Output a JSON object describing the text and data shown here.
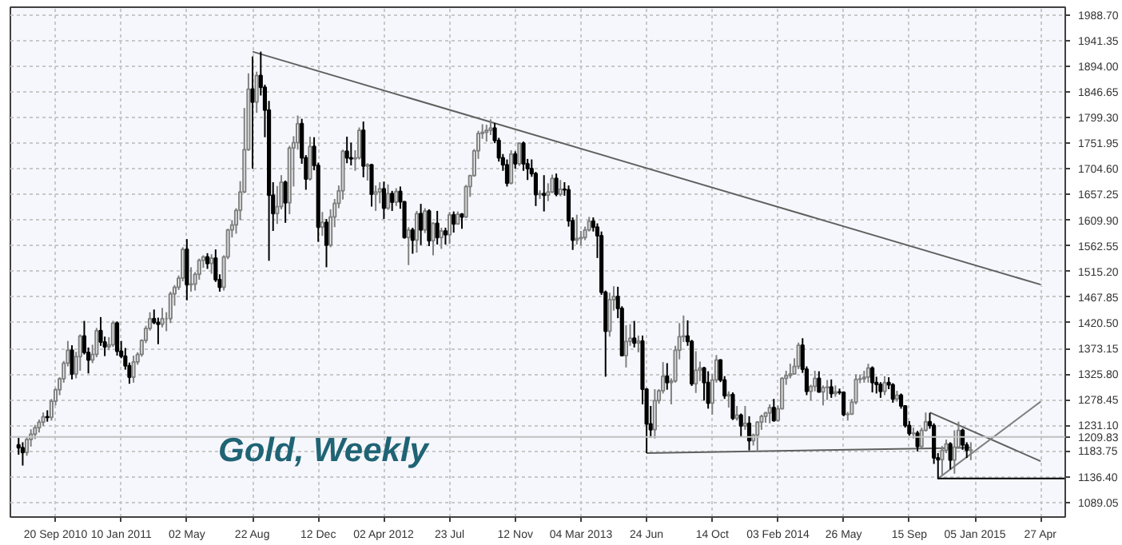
{
  "chart_data": {
    "type": "candlestick",
    "title": "Gold, Weekly",
    "xlim": [
      "2010-07-05",
      "2015-06-08"
    ],
    "ylim": [
      1062,
      2003
    ],
    "xticks": [
      {
        "value": "2010-09-20",
        "label": "20 Sep 2010"
      },
      {
        "value": "2011-01-10",
        "label": "10 Jan 2011"
      },
      {
        "value": "2011-05-02",
        "label": "02 May"
      },
      {
        "value": "2011-08-22",
        "label": "22 Aug"
      },
      {
        "value": "2011-12-12",
        "label": "12 Dec"
      },
      {
        "value": "2012-04-02",
        "label": "02 Apr 2012"
      },
      {
        "value": "2012-07-23",
        "label": "23 Jul"
      },
      {
        "value": "2012-11-12",
        "label": "12 Nov"
      },
      {
        "value": "2013-03-04",
        "label": "04 Mar 2013"
      },
      {
        "value": "2013-06-24",
        "label": "24 Jun"
      },
      {
        "value": "2013-10-14",
        "label": "14 Oct"
      },
      {
        "value": "2014-02-03",
        "label": "03 Feb 2014"
      },
      {
        "value": "2014-05-26",
        "label": "26 May"
      },
      {
        "value": "2014-09-15",
        "label": "15 Sep"
      },
      {
        "value": "2015-01-05",
        "label": "05 Jan 2015"
      },
      {
        "value": "2015-04-27",
        "label": "27 Apr"
      }
    ],
    "yticks": [
      {
        "value": 1089.05,
        "label": "1089.05"
      },
      {
        "value": 1136.4,
        "label": "1136.40"
      },
      {
        "value": 1183.75,
        "label": "1183.75"
      },
      {
        "value": 1231.1,
        "label": "1231.10"
      },
      {
        "value": 1278.45,
        "label": "1278.45"
      },
      {
        "value": 1325.8,
        "label": "1325.80"
      },
      {
        "value": 1373.15,
        "label": "1373.15"
      },
      {
        "value": 1420.5,
        "label": "1420.50"
      },
      {
        "value": 1467.85,
        "label": "1467.85"
      },
      {
        "value": 1515.2,
        "label": "1515.20"
      },
      {
        "value": 1562.55,
        "label": "1562.55"
      },
      {
        "value": 1609.9,
        "label": "1609.90"
      },
      {
        "value": 1657.25,
        "label": "1657.25"
      },
      {
        "value": 1704.6,
        "label": "1704.60"
      },
      {
        "value": 1751.95,
        "label": "1751.95"
      },
      {
        "value": 1799.3,
        "label": "1799.30"
      },
      {
        "value": 1846.65,
        "label": "1846.65"
      },
      {
        "value": 1894.0,
        "label": "1894.00"
      },
      {
        "value": 1941.35,
        "label": "1941.35"
      },
      {
        "value": 1988.7,
        "label": "1988.70"
      }
    ],
    "grid": true,
    "tick_labels": true,
    "ref_lines": [
      {
        "axis": "y",
        "value": 1209.83,
        "label": "1209.83",
        "color": "#c0c0c0"
      }
    ],
    "x": [
      "2010-07-19",
      "2010-07-26",
      "2010-08-02",
      "2010-08-09",
      "2010-08-16",
      "2010-08-23",
      "2010-08-30",
      "2010-09-06",
      "2010-09-13",
      "2010-09-20",
      "2010-09-27",
      "2010-10-04",
      "2010-10-11",
      "2010-10-18",
      "2010-10-25",
      "2010-11-01",
      "2010-11-08",
      "2010-11-15",
      "2010-11-22",
      "2010-11-29",
      "2010-12-06",
      "2010-12-13",
      "2010-12-20",
      "2010-12-27",
      "2011-01-03",
      "2011-01-10",
      "2011-01-17",
      "2011-01-24",
      "2011-01-31",
      "2011-02-07",
      "2011-02-14",
      "2011-02-21",
      "2011-02-28",
      "2011-03-07",
      "2011-03-14",
      "2011-03-21",
      "2011-03-28",
      "2011-04-04",
      "2011-04-11",
      "2011-04-18",
      "2011-04-25",
      "2011-05-02",
      "2011-05-09",
      "2011-05-16",
      "2011-05-23",
      "2011-05-30",
      "2011-06-06",
      "2011-06-13",
      "2011-06-20",
      "2011-06-27",
      "2011-07-04",
      "2011-07-11",
      "2011-07-18",
      "2011-07-25",
      "2011-08-01",
      "2011-08-08",
      "2011-08-15",
      "2011-08-22",
      "2011-08-29",
      "2011-09-05",
      "2011-09-12",
      "2011-09-19",
      "2011-09-26",
      "2011-10-03",
      "2011-10-10",
      "2011-10-17",
      "2011-10-24",
      "2011-10-31",
      "2011-11-07",
      "2011-11-14",
      "2011-11-21",
      "2011-11-28",
      "2011-12-05",
      "2011-12-12",
      "2011-12-19",
      "2011-12-26",
      "2012-01-02",
      "2012-01-09",
      "2012-01-16",
      "2012-01-23",
      "2012-01-30",
      "2012-02-06",
      "2012-02-13",
      "2012-02-20",
      "2012-02-27",
      "2012-03-05",
      "2012-03-12",
      "2012-03-19",
      "2012-03-26",
      "2012-04-02",
      "2012-04-09",
      "2012-04-16",
      "2012-04-23",
      "2012-04-30",
      "2012-05-07",
      "2012-05-14",
      "2012-05-21",
      "2012-05-28",
      "2012-06-04",
      "2012-06-11",
      "2012-06-18",
      "2012-06-25",
      "2012-07-02",
      "2012-07-09",
      "2012-07-16",
      "2012-07-23",
      "2012-07-30",
      "2012-08-06",
      "2012-08-13",
      "2012-08-20",
      "2012-08-27",
      "2012-09-03",
      "2012-09-10",
      "2012-09-17",
      "2012-09-24",
      "2012-10-01",
      "2012-10-08",
      "2012-10-15",
      "2012-10-22",
      "2012-10-29",
      "2012-11-05",
      "2012-11-12",
      "2012-11-19",
      "2012-11-26",
      "2012-12-03",
      "2012-12-10",
      "2012-12-17",
      "2012-12-24",
      "2012-12-31",
      "2013-01-07",
      "2013-01-14",
      "2013-01-21",
      "2013-01-28",
      "2013-02-04",
      "2013-02-11",
      "2013-02-18",
      "2013-02-25",
      "2013-03-04",
      "2013-03-11",
      "2013-03-18",
      "2013-03-25",
      "2013-04-01",
      "2013-04-08",
      "2013-04-15",
      "2013-04-22",
      "2013-04-29",
      "2013-05-06",
      "2013-05-13",
      "2013-05-20",
      "2013-05-27",
      "2013-06-03",
      "2013-06-10",
      "2013-06-17",
      "2013-06-24",
      "2013-07-01",
      "2013-07-08",
      "2013-07-15",
      "2013-07-22",
      "2013-07-29",
      "2013-08-05",
      "2013-08-12",
      "2013-08-19",
      "2013-08-26",
      "2013-09-02",
      "2013-09-09",
      "2013-09-16",
      "2013-09-23",
      "2013-09-30",
      "2013-10-07",
      "2013-10-14",
      "2013-10-21",
      "2013-10-28",
      "2013-11-04",
      "2013-11-11",
      "2013-11-18",
      "2013-11-25",
      "2013-12-02",
      "2013-12-09",
      "2013-12-16",
      "2013-12-23",
      "2013-12-30",
      "2014-01-06",
      "2014-01-13",
      "2014-01-20",
      "2014-01-27",
      "2014-02-03",
      "2014-02-10",
      "2014-02-17",
      "2014-02-24",
      "2014-03-03",
      "2014-03-10",
      "2014-03-17",
      "2014-03-24",
      "2014-03-31",
      "2014-04-07",
      "2014-04-14",
      "2014-04-21",
      "2014-04-28",
      "2014-05-05",
      "2014-05-12",
      "2014-05-19",
      "2014-05-26",
      "2014-06-02",
      "2014-06-09",
      "2014-06-16",
      "2014-06-23",
      "2014-06-30",
      "2014-07-07",
      "2014-07-14",
      "2014-07-21",
      "2014-07-28",
      "2014-08-04",
      "2014-08-11",
      "2014-08-18",
      "2014-08-25",
      "2014-09-01",
      "2014-09-08",
      "2014-09-15",
      "2014-09-22",
      "2014-09-29",
      "2014-10-06",
      "2014-10-13",
      "2014-10-20",
      "2014-10-27",
      "2014-11-03",
      "2014-11-10",
      "2014-11-17",
      "2014-11-24",
      "2014-12-01",
      "2014-12-08",
      "2014-12-15",
      "2014-12-22",
      "2014-12-29"
    ],
    "ohlc": [
      [
        1195,
        1208,
        1177,
        1190
      ],
      [
        1190,
        1200,
        1157,
        1181
      ],
      [
        1181,
        1210,
        1175,
        1205
      ],
      [
        1205,
        1224,
        1192,
        1215
      ],
      [
        1215,
        1232,
        1206,
        1227
      ],
      [
        1227,
        1242,
        1218,
        1237
      ],
      [
        1237,
        1255,
        1230,
        1247
      ],
      [
        1247,
        1259,
        1238,
        1246
      ],
      [
        1246,
        1280,
        1240,
        1276
      ],
      [
        1276,
        1300,
        1268,
        1297
      ],
      [
        1297,
        1320,
        1287,
        1317
      ],
      [
        1317,
        1350,
        1310,
        1346
      ],
      [
        1346,
        1387,
        1340,
        1370
      ],
      [
        1370,
        1379,
        1316,
        1326
      ],
      [
        1326,
        1367,
        1318,
        1358
      ],
      [
        1358,
        1399,
        1332,
        1396
      ],
      [
        1396,
        1424,
        1362,
        1366
      ],
      [
        1366,
        1375,
        1327,
        1352
      ],
      [
        1352,
        1380,
        1346,
        1362
      ],
      [
        1362,
        1411,
        1357,
        1406
      ],
      [
        1406,
        1431,
        1378,
        1385
      ],
      [
        1385,
        1395,
        1359,
        1376
      ],
      [
        1376,
        1394,
        1370,
        1380
      ],
      [
        1380,
        1424,
        1376,
        1420
      ],
      [
        1420,
        1423,
        1360,
        1368
      ],
      [
        1368,
        1387,
        1355,
        1359
      ],
      [
        1359,
        1374,
        1334,
        1341
      ],
      [
        1341,
        1347,
        1308,
        1320
      ],
      [
        1320,
        1360,
        1310,
        1348
      ],
      [
        1348,
        1366,
        1343,
        1362
      ],
      [
        1362,
        1390,
        1358,
        1388
      ],
      [
        1388,
        1415,
        1383,
        1410
      ],
      [
        1410,
        1440,
        1406,
        1428
      ],
      [
        1428,
        1445,
        1418,
        1421
      ],
      [
        1421,
        1430,
        1381,
        1418
      ],
      [
        1418,
        1448,
        1412,
        1428
      ],
      [
        1428,
        1440,
        1405,
        1428
      ],
      [
        1428,
        1478,
        1420,
        1474
      ],
      [
        1474,
        1490,
        1452,
        1486
      ],
      [
        1486,
        1508,
        1481,
        1503
      ],
      [
        1503,
        1560,
        1497,
        1556
      ],
      [
        1556,
        1575,
        1462,
        1491
      ],
      [
        1491,
        1523,
        1478,
        1492
      ],
      [
        1492,
        1514,
        1480,
        1510
      ],
      [
        1510,
        1539,
        1500,
        1536
      ],
      [
        1536,
        1545,
        1522,
        1542
      ],
      [
        1542,
        1549,
        1520,
        1530
      ],
      [
        1530,
        1547,
        1511,
        1540
      ],
      [
        1540,
        1556,
        1496,
        1500
      ],
      [
        1500,
        1510,
        1478,
        1486
      ],
      [
        1486,
        1545,
        1480,
        1542
      ],
      [
        1542,
        1594,
        1538,
        1592
      ],
      [
        1592,
        1610,
        1578,
        1601
      ],
      [
        1601,
        1632,
        1585,
        1628
      ],
      [
        1628,
        1682,
        1610,
        1662
      ],
      [
        1662,
        1817,
        1660,
        1740
      ],
      [
        1740,
        1881,
        1738,
        1852
      ],
      [
        1852,
        1912,
        1705,
        1828
      ],
      [
        1828,
        1884,
        1808,
        1877
      ],
      [
        1877,
        1921,
        1840,
        1855
      ],
      [
        1855,
        1860,
        1763,
        1813
      ],
      [
        1813,
        1830,
        1535,
        1656
      ],
      [
        1656,
        1680,
        1590,
        1622
      ],
      [
        1622,
        1673,
        1603,
        1635
      ],
      [
        1635,
        1693,
        1630,
        1680
      ],
      [
        1680,
        1683,
        1605,
        1642
      ],
      [
        1642,
        1747,
        1621,
        1743
      ],
      [
        1743,
        1765,
        1672,
        1753
      ],
      [
        1753,
        1803,
        1740,
        1788
      ],
      [
        1788,
        1797,
        1714,
        1725
      ],
      [
        1725,
        1730,
        1666,
        1686
      ],
      [
        1686,
        1764,
        1683,
        1746
      ],
      [
        1746,
        1763,
        1702,
        1711
      ],
      [
        1711,
        1716,
        1570,
        1597
      ],
      [
        1597,
        1625,
        1581,
        1606
      ],
      [
        1606,
        1612,
        1523,
        1564
      ],
      [
        1564,
        1630,
        1560,
        1616
      ],
      [
        1616,
        1649,
        1597,
        1641
      ],
      [
        1641,
        1674,
        1632,
        1664
      ],
      [
        1664,
        1740,
        1648,
        1737
      ],
      [
        1737,
        1764,
        1715,
        1725
      ],
      [
        1725,
        1753,
        1711,
        1723
      ],
      [
        1723,
        1739,
        1701,
        1725
      ],
      [
        1725,
        1781,
        1722,
        1776
      ],
      [
        1776,
        1792,
        1689,
        1710
      ],
      [
        1710,
        1715,
        1683,
        1712
      ],
      [
        1712,
        1714,
        1635,
        1658
      ],
      [
        1658,
        1674,
        1627,
        1662
      ],
      [
        1662,
        1680,
        1641,
        1668
      ],
      [
        1668,
        1681,
        1612,
        1632
      ],
      [
        1632,
        1676,
        1629,
        1659
      ],
      [
        1659,
        1664,
        1627,
        1643
      ],
      [
        1643,
        1669,
        1636,
        1663
      ],
      [
        1663,
        1672,
        1631,
        1644
      ],
      [
        1644,
        1645,
        1576,
        1578
      ],
      [
        1578,
        1597,
        1527,
        1592
      ],
      [
        1592,
        1596,
        1548,
        1573
      ],
      [
        1573,
        1627,
        1550,
        1622
      ],
      [
        1622,
        1640,
        1564,
        1592
      ],
      [
        1592,
        1632,
        1586,
        1627
      ],
      [
        1627,
        1630,
        1562,
        1572
      ],
      [
        1572,
        1606,
        1545,
        1604
      ],
      [
        1604,
        1627,
        1565,
        1578
      ],
      [
        1578,
        1596,
        1557,
        1590
      ],
      [
        1590,
        1596,
        1565,
        1583
      ],
      [
        1583,
        1625,
        1566,
        1620
      ],
      [
        1620,
        1626,
        1587,
        1603
      ],
      [
        1603,
        1626,
        1602,
        1621
      ],
      [
        1621,
        1623,
        1594,
        1616
      ],
      [
        1616,
        1675,
        1614,
        1672
      ],
      [
        1672,
        1693,
        1653,
        1692
      ],
      [
        1692,
        1741,
        1690,
        1738
      ],
      [
        1738,
        1775,
        1723,
        1770
      ],
      [
        1770,
        1787,
        1760,
        1772
      ],
      [
        1772,
        1786,
        1755,
        1776
      ],
      [
        1776,
        1796,
        1767,
        1780
      ],
      [
        1780,
        1789,
        1752,
        1757
      ],
      [
        1757,
        1762,
        1718,
        1725
      ],
      [
        1725,
        1732,
        1701,
        1712
      ],
      [
        1712,
        1722,
        1672,
        1678
      ],
      [
        1678,
        1739,
        1676,
        1732
      ],
      [
        1732,
        1737,
        1705,
        1714
      ],
      [
        1714,
        1753,
        1710,
        1752
      ],
      [
        1752,
        1755,
        1701,
        1714
      ],
      [
        1714,
        1723,
        1684,
        1705
      ],
      [
        1705,
        1722,
        1690,
        1696
      ],
      [
        1696,
        1699,
        1636,
        1657
      ],
      [
        1657,
        1665,
        1649,
        1659
      ],
      [
        1659,
        1693,
        1626,
        1656
      ],
      [
        1656,
        1678,
        1645,
        1662
      ],
      [
        1662,
        1694,
        1660,
        1687
      ],
      [
        1687,
        1696,
        1654,
        1658
      ],
      [
        1658,
        1684,
        1654,
        1667
      ],
      [
        1667,
        1680,
        1655,
        1666
      ],
      [
        1666,
        1674,
        1598,
        1609
      ],
      [
        1609,
        1615,
        1555,
        1573
      ],
      [
        1573,
        1620,
        1565,
        1576
      ],
      [
        1576,
        1590,
        1563,
        1578
      ],
      [
        1578,
        1598,
        1573,
        1592
      ],
      [
        1592,
        1616,
        1589,
        1608
      ],
      [
        1608,
        1615,
        1589,
        1597
      ],
      [
        1597,
        1604,
        1540,
        1581
      ],
      [
        1581,
        1589,
        1472,
        1477
      ],
      [
        1477,
        1480,
        1321,
        1405
      ],
      [
        1405,
        1476,
        1395,
        1463
      ],
      [
        1463,
        1488,
        1443,
        1469
      ],
      [
        1469,
        1487,
        1429,
        1447
      ],
      [
        1447,
        1451,
        1359,
        1360
      ],
      [
        1360,
        1416,
        1338,
        1386
      ],
      [
        1386,
        1418,
        1378,
        1392
      ],
      [
        1392,
        1424,
        1375,
        1383
      ],
      [
        1383,
        1397,
        1366,
        1387
      ],
      [
        1387,
        1397,
        1270,
        1298
      ],
      [
        1298,
        1300,
        1180,
        1234
      ],
      [
        1234,
        1267,
        1208,
        1223
      ],
      [
        1223,
        1298,
        1207,
        1277
      ],
      [
        1277,
        1298,
        1271,
        1295
      ],
      [
        1295,
        1348,
        1290,
        1322
      ],
      [
        1322,
        1346,
        1297,
        1310
      ],
      [
        1310,
        1318,
        1270,
        1313
      ],
      [
        1313,
        1378,
        1310,
        1370
      ],
      [
        1370,
        1420,
        1353,
        1395
      ],
      [
        1395,
        1434,
        1385,
        1396
      ],
      [
        1396,
        1425,
        1378,
        1386
      ],
      [
        1386,
        1389,
        1304,
        1308
      ],
      [
        1308,
        1368,
        1291,
        1333
      ],
      [
        1333,
        1349,
        1313,
        1337
      ],
      [
        1337,
        1339,
        1277,
        1310
      ],
      [
        1310,
        1331,
        1262,
        1272
      ],
      [
        1272,
        1326,
        1251,
        1315
      ],
      [
        1315,
        1361,
        1310,
        1352
      ],
      [
        1352,
        1353,
        1311,
        1315
      ],
      [
        1315,
        1322,
        1280,
        1286
      ],
      [
        1286,
        1294,
        1264,
        1288
      ],
      [
        1288,
        1292,
        1241,
        1244
      ],
      [
        1244,
        1267,
        1240,
        1250
      ],
      [
        1250,
        1253,
        1211,
        1230
      ],
      [
        1230,
        1267,
        1223,
        1235
      ],
      [
        1235,
        1248,
        1185,
        1203
      ],
      [
        1203,
        1216,
        1194,
        1213
      ],
      [
        1213,
        1239,
        1182,
        1237
      ],
      [
        1237,
        1251,
        1223,
        1248
      ],
      [
        1248,
        1256,
        1236,
        1254
      ],
      [
        1254,
        1270,
        1235,
        1264
      ],
      [
        1264,
        1280,
        1238,
        1240
      ],
      [
        1240,
        1268,
        1238,
        1262
      ],
      [
        1262,
        1320,
        1261,
        1318
      ],
      [
        1318,
        1332,
        1306,
        1323
      ],
      [
        1323,
        1345,
        1318,
        1326
      ],
      [
        1326,
        1355,
        1325,
        1340
      ],
      [
        1340,
        1384,
        1335,
        1379
      ],
      [
        1379,
        1392,
        1328,
        1335
      ],
      [
        1335,
        1340,
        1287,
        1294
      ],
      [
        1294,
        1306,
        1277,
        1303
      ],
      [
        1303,
        1332,
        1294,
        1318
      ],
      [
        1318,
        1331,
        1292,
        1293
      ],
      [
        1293,
        1305,
        1268,
        1301
      ],
      [
        1301,
        1315,
        1278,
        1302
      ],
      [
        1302,
        1316,
        1282,
        1290
      ],
      [
        1290,
        1305,
        1284,
        1293
      ],
      [
        1293,
        1299,
        1288,
        1292
      ],
      [
        1292,
        1294,
        1248,
        1251
      ],
      [
        1251,
        1256,
        1240,
        1252
      ],
      [
        1252,
        1280,
        1251,
        1274
      ],
      [
        1274,
        1325,
        1270,
        1316
      ],
      [
        1316,
        1325,
        1309,
        1317
      ],
      [
        1317,
        1332,
        1310,
        1320
      ],
      [
        1320,
        1345,
        1310,
        1337
      ],
      [
        1337,
        1340,
        1292,
        1310
      ],
      [
        1310,
        1321,
        1290,
        1307
      ],
      [
        1307,
        1311,
        1282,
        1294
      ],
      [
        1294,
        1322,
        1287,
        1310
      ],
      [
        1310,
        1320,
        1298,
        1306
      ],
      [
        1306,
        1309,
        1273,
        1280
      ],
      [
        1280,
        1295,
        1275,
        1287
      ],
      [
        1287,
        1290,
        1262,
        1267
      ],
      [
        1267,
        1268,
        1227,
        1231
      ],
      [
        1231,
        1239,
        1212,
        1216
      ],
      [
        1216,
        1227,
        1207,
        1217
      ],
      [
        1217,
        1221,
        1183,
        1192
      ],
      [
        1192,
        1227,
        1190,
        1222
      ],
      [
        1222,
        1255,
        1220,
        1238
      ],
      [
        1238,
        1254,
        1225,
        1231
      ],
      [
        1231,
        1235,
        1160,
        1171
      ],
      [
        1171,
        1180,
        1132,
        1168
      ],
      [
        1168,
        1193,
        1140,
        1185
      ],
      [
        1185,
        1205,
        1180,
        1197
      ],
      [
        1197,
        1200,
        1150,
        1167
      ],
      [
        1167,
        1222,
        1142,
        1191
      ],
      [
        1191,
        1238,
        1190,
        1222
      ],
      [
        1222,
        1225,
        1186,
        1195
      ],
      [
        1195,
        1200,
        1171,
        1185
      ],
      [
        1185,
        1200,
        1167,
        1186
      ]
    ],
    "series": [
      {
        "type": "line",
        "x": [
          "2011-08-22",
          "2015-04-27"
        ],
        "values": [
          1921,
          1491
        ],
        "color": "#606060"
      },
      {
        "type": "line",
        "x": [
          "2013-06-24",
          "2014-12-29"
        ],
        "values": [
          1180,
          1190
        ],
        "color": "#606060"
      },
      {
        "type": "line",
        "x": [
          "2014-10-20",
          "2015-04-27"
        ],
        "values": [
          1255,
          1165
        ],
        "color": "#606060"
      },
      {
        "type": "line",
        "x": [
          "2014-11-03",
          "2015-04-27"
        ],
        "values": [
          1133,
          1275
        ],
        "color": "#808080"
      },
      {
        "type": "line",
        "x": [
          "2014-11-03",
          "2015-06-08"
        ],
        "values": [
          1133,
          1133
        ],
        "color": "#000000"
      }
    ]
  }
}
